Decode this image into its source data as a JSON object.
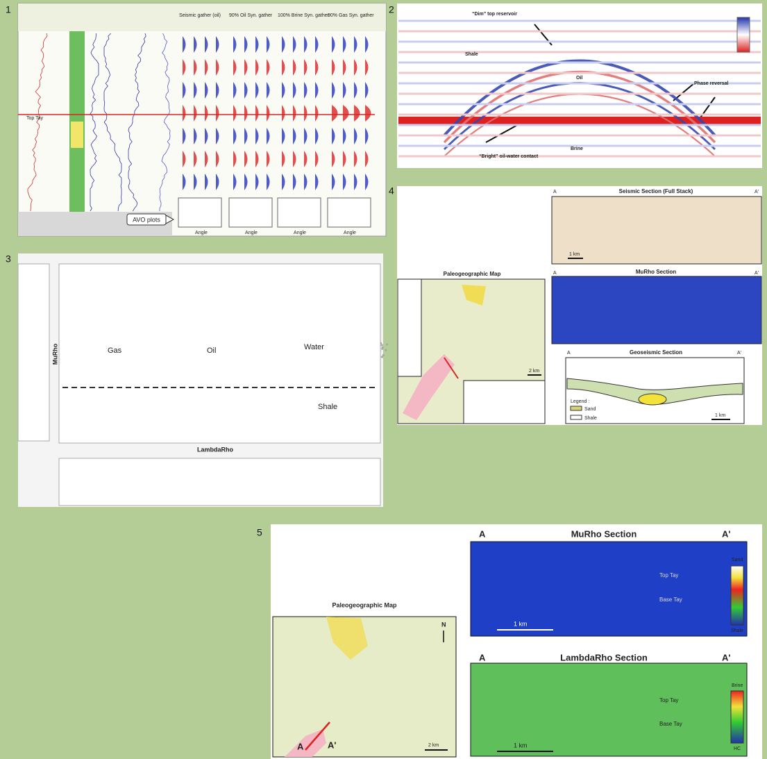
{
  "panel1": {
    "number": "1",
    "tracks": [
      "Seismic gather (oil)",
      "90% Oil Syn. gather",
      "100% Brine Syn. gather",
      "90% Gas Syn. gather"
    ],
    "horizon": "Top Tay",
    "callout": "AVO plots",
    "x_label": "Angle"
  },
  "panel2": {
    "number": "2",
    "dim_label": "“Dim” top reservoir",
    "shale": "Shale",
    "oil": "Oil",
    "phase": "Phase reversal",
    "brine": "Brine",
    "bright_label": "“Bright” oil-water contact"
  },
  "panel3": {
    "number": "3",
    "clusters": [
      "Gas",
      "Oil",
      "Water",
      "Shale"
    ],
    "y_label": "MuRho",
    "x_label": "LambdaRho"
  },
  "panel4": {
    "number": "4",
    "seismic_title": "Seismic Section (Full Stack)",
    "map_title": "Paleogeographic Map",
    "murho_title": "MuRho Section",
    "geo_title": "Geoseismic Section",
    "a": "A",
    "a_prime": "A'",
    "legend_title": "Legend :",
    "legend": [
      "Sand",
      "Shale"
    ],
    "scale_section": "1 km",
    "scale_map": "2 km"
  },
  "panel5": {
    "number": "5",
    "map_title": "Paleogeographic Map",
    "murho_title": "MuRho Section",
    "lambdarho_title": "LambdaRho Section",
    "a": "A",
    "a_prime": "A'",
    "north": "N",
    "scale_map": "2 km",
    "scale_section": "1 km",
    "top": "Top Tay",
    "base": "Base Tay",
    "sand": "Sand",
    "shale": "Shale",
    "brine": "Brine",
    "hc": "HC"
  }
}
